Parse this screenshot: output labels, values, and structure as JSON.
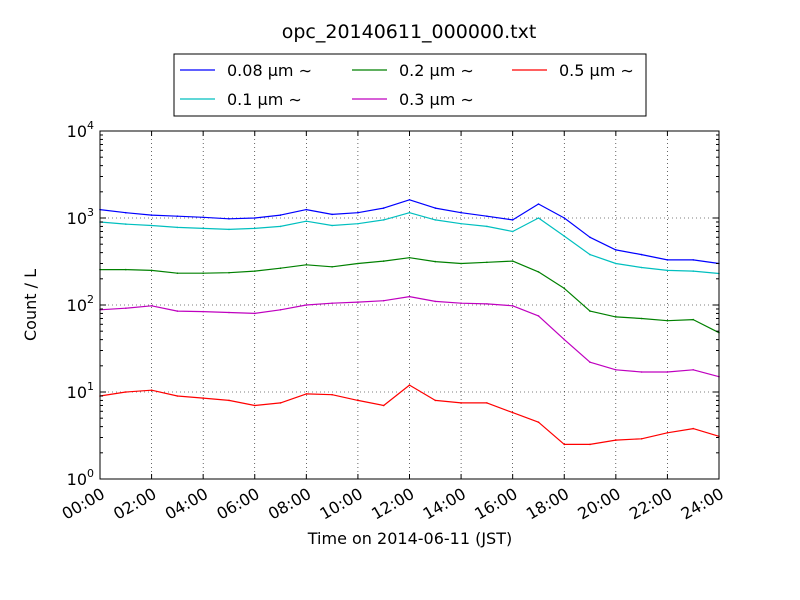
{
  "chart_data": {
    "type": "line",
    "title": "opc_20140611_000000.txt",
    "xlabel": "Time on 2014-06-11 (JST)",
    "ylabel": "Count / L",
    "x_unit": "hours (JST)",
    "xlim": [
      0,
      24
    ],
    "ylim": [
      1,
      10000
    ],
    "y_scale": "log",
    "grid": true,
    "legend_position": "top-center",
    "x_ticks": [
      "00:00",
      "02:00",
      "04:00",
      "06:00",
      "08:00",
      "10:00",
      "12:00",
      "14:00",
      "16:00",
      "18:00",
      "20:00",
      "22:00",
      "24:00"
    ],
    "y_ticks": [
      {
        "value": 1,
        "base": "10",
        "exp": "0"
      },
      {
        "value": 10,
        "base": "10",
        "exp": "1"
      },
      {
        "value": 100,
        "base": "10",
        "exp": "2"
      },
      {
        "value": 1000,
        "base": "10",
        "exp": "3"
      },
      {
        "value": 10000,
        "base": "10",
        "exp": "4"
      }
    ],
    "x": [
      0,
      1,
      2,
      3,
      4,
      5,
      6,
      7,
      8,
      9,
      10,
      11,
      12,
      13,
      14,
      15,
      16,
      17,
      18,
      19,
      20,
      21,
      22,
      23,
      24
    ],
    "series": [
      {
        "name": "0.08 μm ∼",
        "color": "#0000ff",
        "values": [
          1250,
          1150,
          1080,
          1050,
          1020,
          980,
          1000,
          1080,
          1250,
          1100,
          1150,
          1300,
          1620,
          1300,
          1150,
          1050,
          950,
          1450,
          1000,
          600,
          430,
          380,
          330,
          330,
          300
        ]
      },
      {
        "name": "0.1 μm ∼",
        "color": "#00bfbf",
        "values": [
          900,
          850,
          820,
          780,
          760,
          740,
          760,
          800,
          920,
          820,
          860,
          950,
          1150,
          950,
          860,
          800,
          700,
          1000,
          620,
          380,
          300,
          270,
          250,
          245,
          230
        ]
      },
      {
        "name": "0.2 μm ∼",
        "color": "#008000",
        "values": [
          255,
          255,
          250,
          232,
          232,
          235,
          245,
          265,
          290,
          275,
          300,
          320,
          350,
          315,
          300,
          310,
          320,
          240,
          155,
          85,
          73,
          70,
          66,
          68,
          48
        ]
      },
      {
        "name": "0.3 μm ∼",
        "color": "#bf00bf",
        "values": [
          88,
          92,
          98,
          85,
          84,
          82,
          80,
          88,
          100,
          105,
          108,
          112,
          125,
          110,
          105,
          103,
          98,
          75,
          40,
          22,
          18,
          17,
          17,
          18,
          15
        ]
      },
      {
        "name": "0.5 μm ∼",
        "color": "#ff0000",
        "values": [
          9,
          10,
          10.5,
          9,
          8.5,
          8,
          7,
          7.5,
          9.5,
          9.3,
          8,
          7,
          12,
          8,
          7.5,
          7.5,
          5.8,
          4.5,
          2.5,
          2.5,
          2.8,
          2.9,
          3.4,
          3.8,
          3.1
        ]
      }
    ]
  }
}
